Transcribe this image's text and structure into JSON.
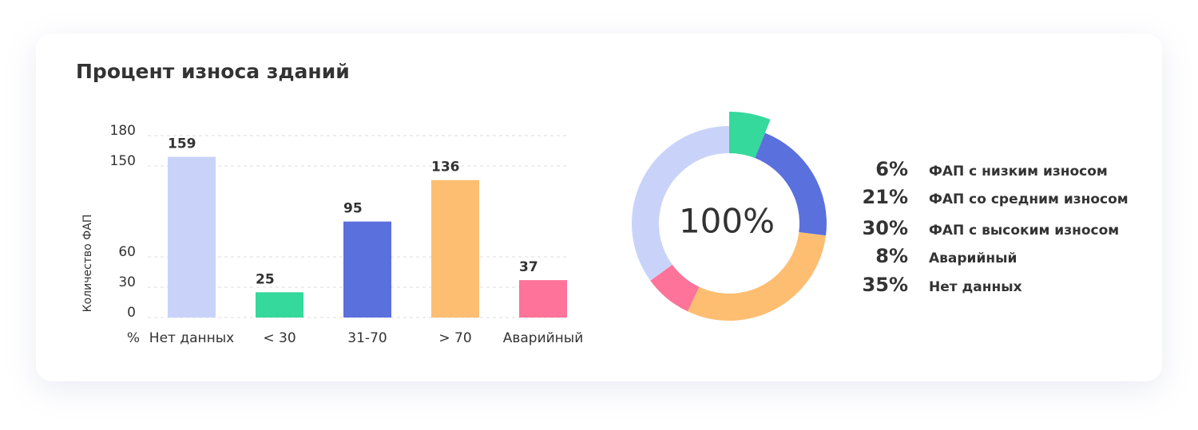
{
  "title": "Процент износа зданий",
  "chart_data": [
    {
      "type": "bar",
      "ylabel": "Количество ФАП",
      "xlabel": "%",
      "categories": [
        "Нет данных",
        "< 30",
        "31-70",
        "> 70",
        "Аварийный"
      ],
      "values": [
        159,
        25,
        95,
        136,
        37
      ],
      "colors": [
        "#c9d3fa",
        "#34d99b",
        "#5a70dd",
        "#fdbe72",
        "#fd7399"
      ],
      "ylim": [
        0,
        180
      ],
      "yticks": [
        0,
        30,
        60,
        150,
        180
      ],
      "grid": true
    },
    {
      "type": "pie",
      "center_label": "100%",
      "categories": [
        "ФАП с низким износом",
        "ФАП со средним износом",
        "ФАП с высоким износом",
        "Аварийный",
        "Нет данных"
      ],
      "values": [
        6,
        21,
        30,
        8,
        35
      ],
      "value_labels": [
        "6%",
        "21%",
        "30%",
        "8%",
        "35%"
      ],
      "colors": [
        "#34d99b",
        "#5a70dd",
        "#fdbe72",
        "#fd7399",
        "#c9d3fa"
      ]
    }
  ]
}
